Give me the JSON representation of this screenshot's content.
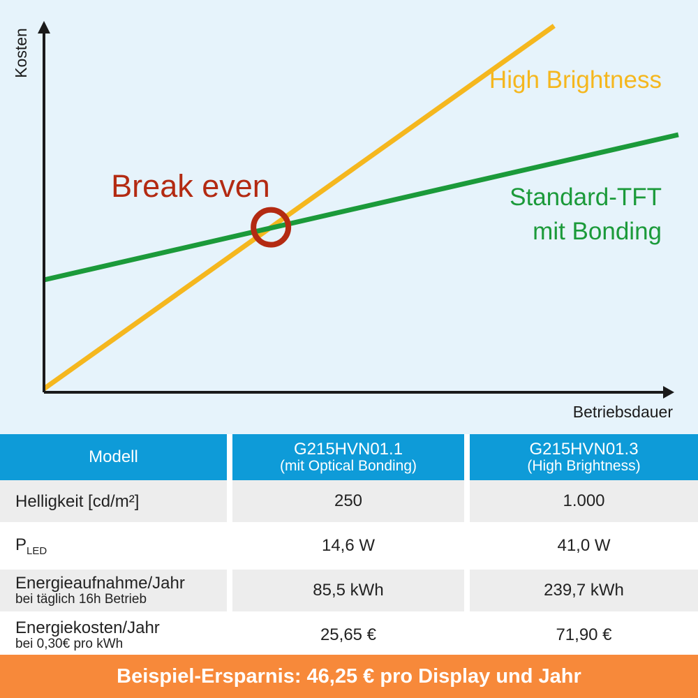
{
  "chart_data": {
    "type": "line",
    "xlabel": "Betriebsdauer",
    "ylabel": "Kosten",
    "xlim": [
      0,
      100
    ],
    "ylim": [
      0,
      100
    ],
    "series": [
      {
        "name": "High Brightness",
        "color": "#f5b71e",
        "x": [
          0,
          78
        ],
        "y": [
          0,
          100
        ]
      },
      {
        "name": "Standard-TFT mit Bonding",
        "color": "#1b9a3a",
        "x": [
          0,
          97
        ],
        "y": [
          30,
          70
        ]
      }
    ],
    "annotation": {
      "text": "Break even",
      "x": 34.7,
      "y": 44.5,
      "color": "#b32a12"
    },
    "series_labels": {
      "high": [
        "High Brightness"
      ],
      "standard": [
        "Standard-TFT",
        "mit Bonding"
      ]
    }
  },
  "table": {
    "headers": [
      {
        "main": "Modell",
        "sub": ""
      },
      {
        "main": "G215HVN01.1",
        "sub": "(mit Optical Bonding)"
      },
      {
        "main": "G215HVN01.3",
        "sub": "(High Brightness)"
      }
    ],
    "rows": [
      {
        "label": "Helligkeit [cd/m²]",
        "sublabel": "",
        "col1": "250",
        "col2": "1.000"
      },
      {
        "label": "P",
        "label_sub": "LED",
        "sublabel": "",
        "col1": "14,6 W",
        "col2": "41,0 W"
      },
      {
        "label": "Energieaufnahme/Jahr",
        "sublabel": "bei täglich 16h Betrieb",
        "col1": "85,5 kWh",
        "col2": "239,7 kWh"
      },
      {
        "label": "Energiekosten/Jahr",
        "sublabel": "bei 0,30€ pro kWh",
        "col1": "25,65 €",
        "col2": "71,90 €"
      }
    ]
  },
  "footer": {
    "savings_text": "Beispiel-Ersparnis: 46,25 € pro Display und Jahr"
  },
  "colors": {
    "chart_bg": "#e6f3fb",
    "header_blue": "#0e9bd8",
    "orange": "#f7893a",
    "axis": "#1a1a1a"
  }
}
